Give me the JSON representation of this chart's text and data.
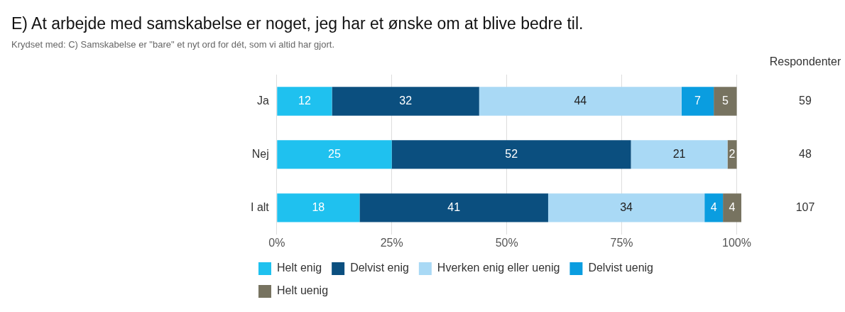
{
  "chart_data": {
    "type": "bar",
    "orientation": "horizontal",
    "stacked": true,
    "title": "E) At arbejde med samskabelse er noget, jeg har et ønske om at blive bedre til.",
    "subtitle": "Krydset med: C) Samskabelse er \"bare\" et nyt ord for dét, som vi altid har gjort.",
    "categories": [
      "Ja",
      "Nej",
      "I alt"
    ],
    "series": [
      {
        "name": "Helt enig",
        "color": "#1fc1ef",
        "values": [
          12,
          25,
          18
        ]
      },
      {
        "name": "Delvist enig",
        "color": "#0b4f7f",
        "values": [
          32,
          52,
          41
        ]
      },
      {
        "name": "Hverken enig eller uenig",
        "color": "#a9d9f5",
        "values": [
          44,
          21,
          34
        ]
      },
      {
        "name": "Delvist uenig",
        "color": "#0a9de0",
        "values": [
          7,
          null,
          4
        ]
      },
      {
        "name": "Helt uenig",
        "color": "#777360",
        "values": [
          5,
          2,
          4
        ]
      }
    ],
    "xlim": [
      0,
      101
    ],
    "xticks": [
      {
        "value": 0,
        "label": "0%"
      },
      {
        "value": 25,
        "label": "25%"
      },
      {
        "value": 50,
        "label": "50%"
      },
      {
        "value": 75,
        "label": "75%"
      },
      {
        "value": 100,
        "label": "100%"
      }
    ],
    "grid": "x",
    "legend": "bottom",
    "data_labels": true,
    "annotations": [
      "Respondenter",
      "59",
      "48",
      "107"
    ]
  }
}
